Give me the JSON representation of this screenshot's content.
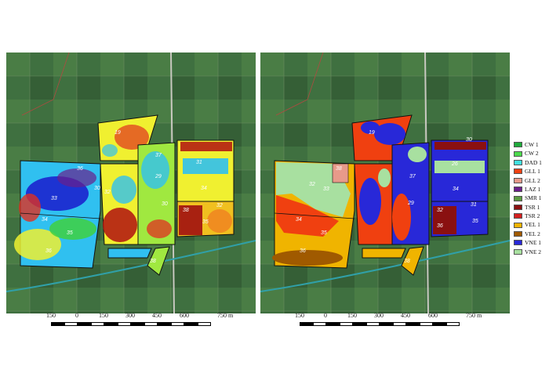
{
  "colors": {
    "CW 1": "#1faa3b",
    "CW 2": "#4cd94c",
    "DAD 1": "#40e0e0",
    "GLL 1": "#f04010",
    "GLL 2": "#e89a8a",
    "LAZ 1": "#6a1f8a",
    "SMR 1": "#5a9a40",
    "TSR 1": "#8a1010",
    "TSR 2": "#d42020",
    "VEL 1": "#f0b400",
    "VEL 2": "#a05a00",
    "VNE 1": "#2828d8",
    "VNE 2": "#a8e0a0",
    "field_border": "#1a1a1a",
    "road": "#d8d8d0",
    "canal": "#30a0a8"
  },
  "left_map": {
    "zone_labels": [
      "19",
      "30",
      "32",
      "33",
      "34",
      "35",
      "36",
      "37",
      "38",
      "29",
      "30",
      "31",
      "32",
      "34",
      "35",
      "36",
      "38"
    ]
  },
  "right_map": {
    "zone_labels": [
      "19",
      "34",
      "32",
      "33",
      "35",
      "36",
      "37",
      "38",
      "29",
      "30",
      "26",
      "34",
      "35",
      "36",
      "38",
      "31",
      "32"
    ]
  },
  "scalebar": {
    "ticks": [
      "150",
      "0",
      "150",
      "300",
      "450",
      "600",
      "750 m"
    ]
  },
  "legend": [
    {
      "label": "CW 1",
      "color_key": "CW 1"
    },
    {
      "label": "CW 2",
      "color_key": "CW 2"
    },
    {
      "label": "DAD 1",
      "color_key": "DAD 1"
    },
    {
      "label": "GLL 1",
      "color_key": "GLL 1"
    },
    {
      "label": "GLL 2",
      "color_key": "GLL 2"
    },
    {
      "label": "LAZ 1",
      "color_key": "LAZ 1"
    },
    {
      "label": "SMR 1",
      "color_key": "SMR 1"
    },
    {
      "label": "TSR 1",
      "color_key": "TSR 1"
    },
    {
      "label": "TSR 2",
      "color_key": "TSR 2"
    },
    {
      "label": "VEL 1",
      "color_key": "VEL 1"
    },
    {
      "label": "VEL 2",
      "color_key": "VEL 2"
    },
    {
      "label": "VNE 1",
      "color_key": "VNE 1"
    },
    {
      "label": "VNE 2",
      "color_key": "VNE 2"
    }
  ]
}
